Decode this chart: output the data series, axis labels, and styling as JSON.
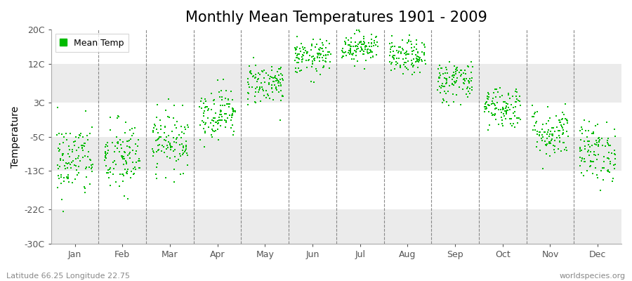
{
  "title": "Monthly Mean Temperatures 1901 - 2009",
  "ylabel": "Temperature",
  "footer_left": "Latitude 66.25 Longitude 22.75",
  "footer_right": "worldspecies.org",
  "legend_label": "Mean Temp",
  "dot_color": "#00bb00",
  "background_color": "#ffffff",
  "band_color": "#ebebeb",
  "ylim": [
    -30,
    20
  ],
  "yticks": [
    -30,
    -22,
    -13,
    -5,
    3,
    12,
    20
  ],
  "ytick_labels": [
    "-30C",
    "-22C",
    "-13C",
    "-5C",
    "3C",
    "12C",
    "20C"
  ],
  "h_bands": [
    {
      "ymin": 12,
      "ymax": 20,
      "color": "#ffffff"
    },
    {
      "ymin": 3,
      "ymax": 12,
      "color": "#ebebeb"
    },
    {
      "ymin": -5,
      "ymax": 3,
      "color": "#ffffff"
    },
    {
      "ymin": -13,
      "ymax": -5,
      "color": "#ebebeb"
    },
    {
      "ymin": -22,
      "ymax": -13,
      "color": "#ffffff"
    },
    {
      "ymin": -30,
      "ymax": -22,
      "color": "#ebebeb"
    }
  ],
  "months": [
    "Jan",
    "Feb",
    "Mar",
    "Apr",
    "May",
    "Jun",
    "Jul",
    "Aug",
    "Sep",
    "Oct",
    "Nov",
    "Dec"
  ],
  "monthly_means": [
    -10.5,
    -10.0,
    -6.0,
    0.5,
    7.5,
    13.5,
    16.0,
    13.5,
    8.0,
    2.0,
    -4.0,
    -8.5
  ],
  "monthly_stds": [
    4.5,
    4.5,
    3.5,
    3.0,
    2.5,
    2.0,
    1.8,
    2.0,
    2.5,
    2.5,
    3.0,
    3.5
  ],
  "n_years": 109,
  "title_fontsize": 15,
  "axis_fontsize": 10,
  "tick_fontsize": 9,
  "marker_size": 3
}
